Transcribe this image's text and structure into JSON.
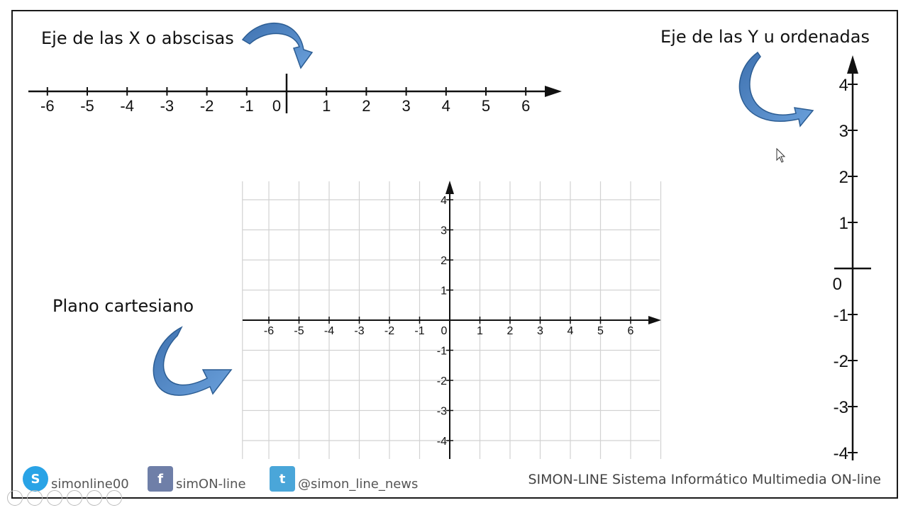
{
  "labels": {
    "x_axis": "Eje de las X o abscisas",
    "y_axis": "Eje de las Y u ordenadas",
    "plane": "Plano cartesiano"
  },
  "x_line": {
    "ticks": [
      "-6",
      "-5",
      "-4",
      "-3",
      "-2",
      "-1",
      "0",
      "1",
      "2",
      "3",
      "4",
      "5",
      "6"
    ]
  },
  "y_line": {
    "ticks": [
      "4",
      "3",
      "2",
      "1",
      "0",
      "-1",
      "-2",
      "-3",
      "-4"
    ]
  },
  "plane": {
    "x_ticks": [
      "-6",
      "-5",
      "-4",
      "-3",
      "-2",
      "-1",
      "0",
      "1",
      "2",
      "3",
      "4",
      "5",
      "6"
    ],
    "y_ticks": [
      "4",
      "3",
      "2",
      "1",
      "-1",
      "-2",
      "-3",
      "-4"
    ]
  },
  "footer": {
    "skype": "simonline00",
    "facebook": "simON-line",
    "twitter": "@simon_line_news",
    "brand": "SIMON-LINE  Sistema Informático Multimedia ON-line",
    "skype_icon": "skype-icon",
    "facebook_icon": "facebook-icon",
    "twitter_icon": "twitter-icon"
  },
  "colors": {
    "arrow_fill": "#4f86c6",
    "arrow_dark": "#2c5d93",
    "grid": "#d0d0d0",
    "axis": "#111111"
  }
}
